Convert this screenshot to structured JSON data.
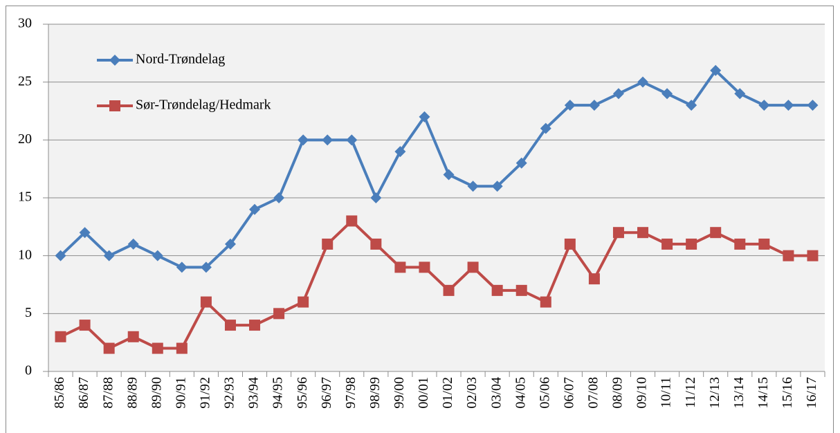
{
  "chart_data": {
    "type": "line",
    "categories": [
      "85/86",
      "86/87",
      "87/88",
      "88/89",
      "89/90",
      "90/91",
      "91/92",
      "92/93",
      "93/94",
      "94/95",
      "95/96",
      "96/97",
      "97/98",
      "98/99",
      "99/00",
      "00/01",
      "01/02",
      "02/03",
      "03/04",
      "04/05",
      "05/06",
      "06/07",
      "07/08",
      "08/09",
      "09/10",
      "10/11",
      "11/12",
      "12/13",
      "13/14",
      "14/15",
      "15/16",
      "16/17"
    ],
    "series": [
      {
        "name": "Nord-Trøndelag",
        "color": "#4a7ebb",
        "marker": "diamond",
        "values": [
          10,
          12,
          10,
          11,
          10,
          9,
          9,
          11,
          14,
          15,
          20,
          20,
          20,
          15,
          19,
          22,
          17,
          16,
          16,
          18,
          21,
          23,
          23,
          24,
          25,
          24,
          23,
          26,
          24,
          23,
          23,
          23
        ]
      },
      {
        "name": "Sør-Trøndelag/Hedmark",
        "color": "#be4b48",
        "marker": "square",
        "values": [
          3,
          4,
          2,
          3,
          2,
          2,
          6,
          4,
          4,
          5,
          6,
          11,
          13,
          11,
          9,
          9,
          7,
          9,
          7,
          7,
          6,
          11,
          8,
          12,
          12,
          11,
          11,
          12,
          11,
          11,
          10,
          10
        ]
      }
    ],
    "ylim": [
      0,
      30
    ],
    "yticks": [
      0,
      5,
      10,
      15,
      20,
      25,
      30
    ],
    "grid": true,
    "legend": "upper left"
  }
}
